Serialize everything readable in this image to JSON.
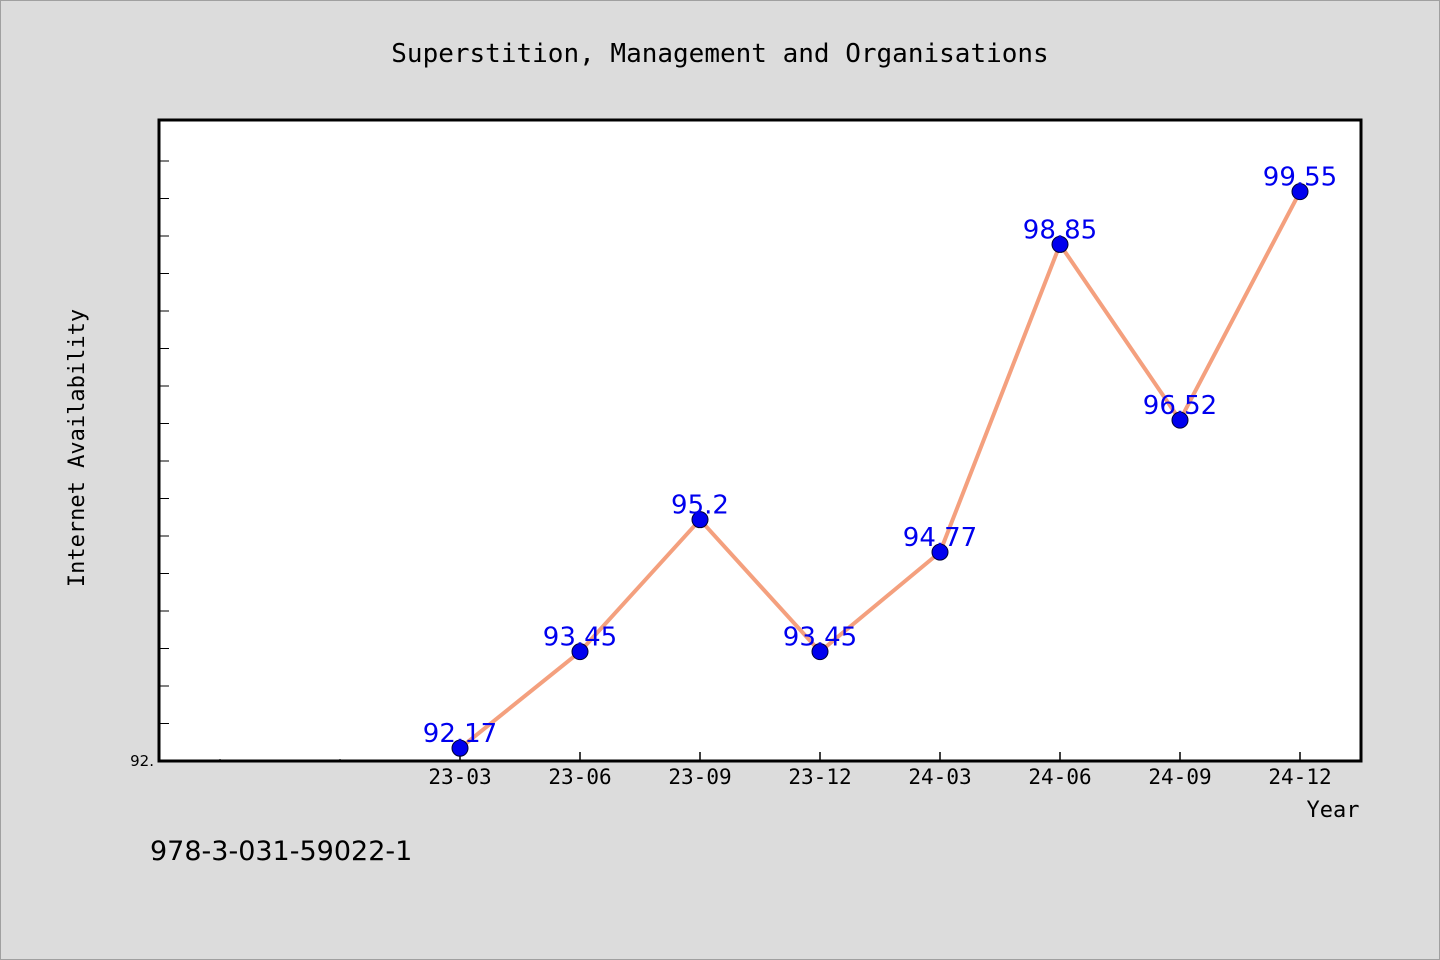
{
  "chart_data": {
    "type": "line",
    "title": "Superstition, Management and Organisations",
    "xlabel": "Year",
    "ylabel": "Internet Availability",
    "categories": [
      "23-03",
      "23-06",
      "23-09",
      "23-12",
      "24-03",
      "24-06",
      "24-09",
      "24-12"
    ],
    "series": [
      {
        "values": [
          92.17,
          93.45,
          95.2,
          93.45,
          94.77,
          98.85,
          96.52,
          99.55
        ],
        "labels": [
          "92.17",
          "93.45",
          "95.2",
          "93.45",
          "94.77",
          "98.85",
          "96.52",
          "99.55"
        ],
        "line_color": "#f4a07e",
        "marker_color": "#0000ee"
      }
    ],
    "ylim": [
      92.0,
      100.5
    ],
    "y_tick_label": "92.",
    "grid": false,
    "legend": "none"
  },
  "footer": {
    "isbn": "978-3-031-59022-1"
  },
  "colors": {
    "background": "#dcdcdc",
    "plot_background": "#ffffff",
    "label_color": "#0000ee"
  }
}
